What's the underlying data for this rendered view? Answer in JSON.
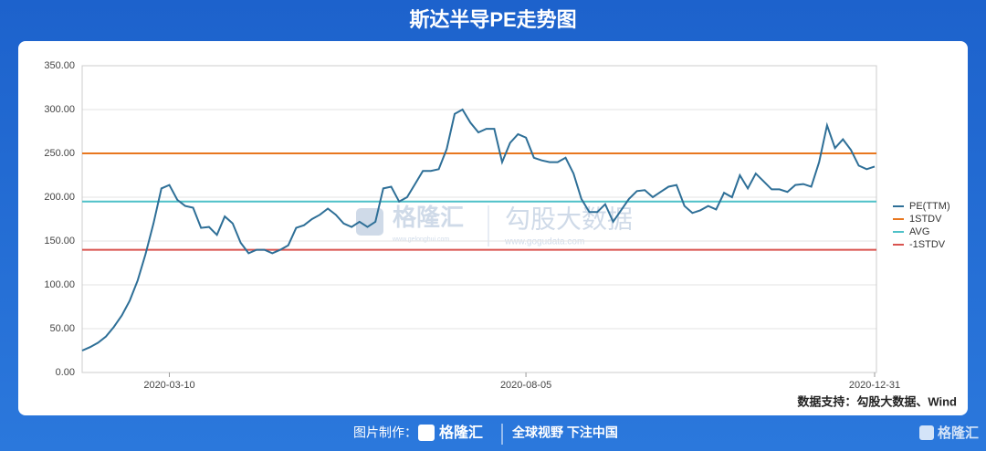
{
  "chart_data": {
    "type": "line",
    "title": "斯达半导PE走势图",
    "categories": [
      null,
      null,
      null,
      null,
      null,
      null,
      null,
      null,
      null,
      null,
      null,
      "2020-03-10",
      null,
      null,
      null,
      null,
      null,
      null,
      null,
      null,
      null,
      null,
      null,
      null,
      null,
      null,
      null,
      null,
      null,
      null,
      null,
      null,
      null,
      null,
      null,
      null,
      null,
      null,
      null,
      null,
      null,
      null,
      null,
      null,
      null,
      null,
      null,
      null,
      null,
      null,
      null,
      null,
      null,
      null,
      null,
      null,
      "2020-08-05",
      null,
      null,
      null,
      null,
      null,
      null,
      null,
      null,
      null,
      null,
      null,
      null,
      null,
      null,
      null,
      null,
      null,
      null,
      null,
      null,
      null,
      null,
      null,
      null,
      null,
      null,
      null,
      null,
      null,
      null,
      null,
      null,
      null,
      null,
      null,
      null,
      null,
      null,
      null,
      null,
      null,
      null,
      null,
      "2020-12-31"
    ],
    "series": [
      {
        "name": "PE(TTM)",
        "color": "#2e6f97",
        "values": [
          25,
          29,
          34,
          41,
          52,
          65,
          82,
          105,
          135,
          170,
          210,
          214,
          197,
          190,
          188,
          165,
          166,
          157,
          178,
          170,
          148,
          136,
          140,
          140,
          136,
          140,
          145,
          165,
          168,
          175,
          180,
          187,
          180,
          170,
          166,
          172,
          166,
          172,
          210,
          212,
          195,
          200,
          215,
          230,
          230,
          232,
          255,
          295,
          300,
          285,
          274,
          278,
          278,
          240,
          262,
          272,
          268,
          245,
          242,
          240,
          240,
          245,
          227,
          198,
          183,
          183,
          192,
          172,
          185,
          198,
          207,
          208,
          200,
          206,
          212,
          214,
          190,
          182,
          185,
          190,
          186,
          205,
          200,
          225,
          210,
          227,
          218,
          209,
          209,
          206,
          214,
          215,
          212,
          240,
          282,
          256,
          266,
          254,
          236,
          232,
          235
        ]
      }
    ],
    "hlines": [
      {
        "name": "1STDV",
        "color": "#e8771f",
        "value": 250
      },
      {
        "name": "AVG",
        "color": "#4fc1c8",
        "value": 195
      },
      {
        "name": "-1STDV",
        "color": "#d9534f",
        "value": 140
      }
    ],
    "ylim": [
      0,
      350
    ],
    "yticks": [
      {
        "value": 0,
        "label": "0.00"
      },
      {
        "value": 50,
        "label": "50.00"
      },
      {
        "value": 100,
        "label": "100.00"
      },
      {
        "value": 150,
        "label": "150.00"
      },
      {
        "value": 200,
        "label": "200.00"
      },
      {
        "value": 250,
        "label": "250.00"
      },
      {
        "value": 300,
        "label": "300.00"
      },
      {
        "value": 350,
        "label": "350.00"
      }
    ],
    "grid": true,
    "legend": "right",
    "source": "数据支持：勾股大数据、Wind"
  },
  "watermark": {
    "brand": "格隆汇",
    "brand_url": "www.gelonghui.com",
    "data_brand": "勾股大数据",
    "data_url": "www.gogudata.com"
  },
  "footer": {
    "made_by": "图片制作：",
    "logo": "格隆汇",
    "slogan": "全球视野 下注中国",
    "corner_logo": "格隆汇"
  }
}
